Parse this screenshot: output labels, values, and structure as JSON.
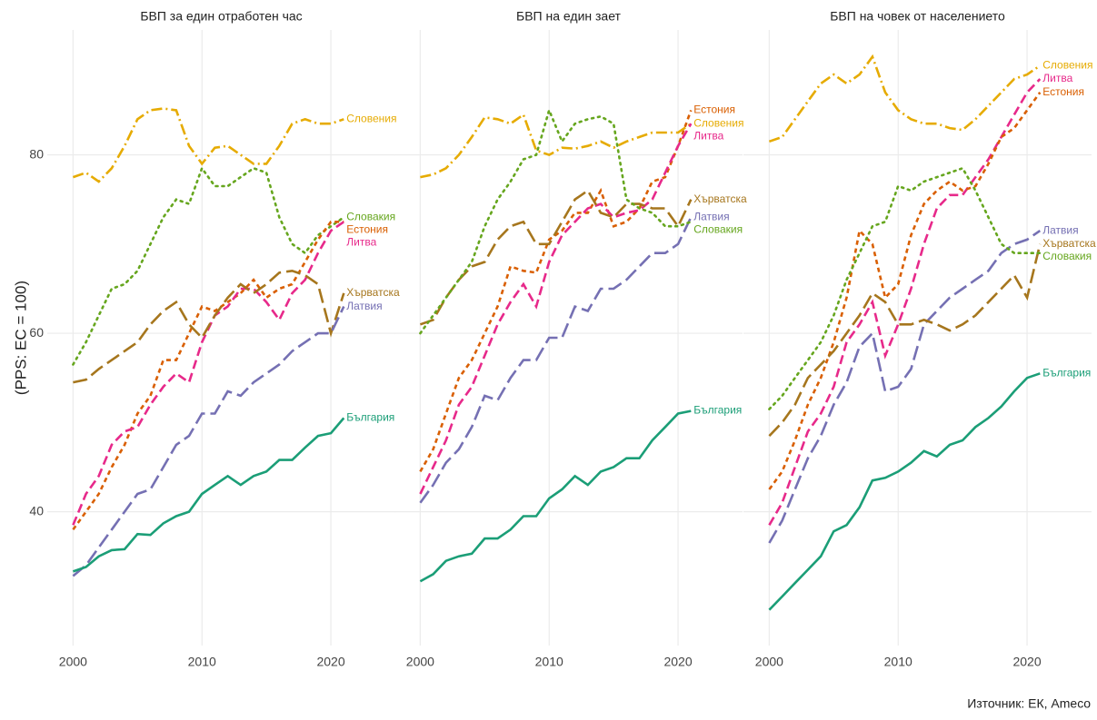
{
  "y_label": "(PPS: ЕС = 100)",
  "source": "Източник: ЕК, Ameco",
  "chart_data": [
    {
      "type": "line",
      "title": "БВП за един отработен час",
      "x": [
        2000,
        2001,
        2002,
        2003,
        2004,
        2005,
        2006,
        2007,
        2008,
        2009,
        2010,
        2011,
        2012,
        2013,
        2014,
        2015,
        2016,
        2017,
        2018,
        2019,
        2020,
        2021
      ],
      "xlim": [
        1998,
        2025
      ],
      "xticks": [
        2000,
        2010,
        2020
      ],
      "ylim": [
        25,
        94
      ],
      "yticks": [
        40,
        60,
        80
      ],
      "grid": true,
      "series": [
        {
          "name": "Словения",
          "color": "#e6ab02",
          "linestyle": "dashdot",
          "values": [
            77.5,
            78,
            77,
            78.5,
            81,
            84,
            85,
            85.2,
            85,
            81,
            79,
            80.8,
            81,
            80,
            79,
            79,
            81,
            83.5,
            84,
            83.5,
            83.5,
            84
          ]
        },
        {
          "name": "Словакия",
          "color": "#66a61e",
          "linestyle": "dotted",
          "values": [
            56.5,
            59,
            62,
            65,
            65.5,
            67,
            70,
            73,
            75,
            74.5,
            78.5,
            76.5,
            76.5,
            77.5,
            78.5,
            78,
            73,
            70,
            69,
            71,
            72,
            73
          ]
        },
        {
          "name": "Естония",
          "color": "#d95f02",
          "linestyle": "shortdash",
          "values": [
            38,
            40,
            42,
            45,
            47.5,
            51,
            53,
            57,
            57,
            60,
            63,
            62.5,
            63.5,
            64.5,
            66,
            64,
            65,
            65.5,
            68,
            70.5,
            72.5,
            72.5
          ]
        },
        {
          "name": "Литва",
          "color": "#e7298a",
          "linestyle": "dash",
          "values": [
            38.5,
            42,
            44,
            47.5,
            49,
            49.5,
            52,
            54,
            55.5,
            54.5,
            59,
            62,
            63,
            65,
            65,
            63.5,
            61.5,
            64.5,
            66,
            69,
            71.5,
            72.5
          ]
        },
        {
          "name": "Хърватска",
          "color": "#a6761d",
          "linestyle": "longdash",
          "values": [
            54.5,
            54.8,
            56,
            57,
            58,
            59,
            61,
            62.5,
            63.5,
            61,
            59.5,
            62,
            64,
            65.5,
            64.5,
            65.5,
            66.8,
            67,
            66.5,
            65.5,
            60,
            64.5
          ]
        },
        {
          "name": "Латвия",
          "color": "#7570b3",
          "linestyle": "longdash",
          "values": [
            32.8,
            34,
            36,
            38,
            40,
            42,
            42.5,
            45,
            47.5,
            48.5,
            51,
            51,
            53.5,
            53,
            54.5,
            55.5,
            56.5,
            58,
            59,
            60,
            60,
            63
          ]
        },
        {
          "name": "България",
          "color": "#1b9e77",
          "linestyle": "solid",
          "values": [
            33.3,
            33.8,
            35,
            35.7,
            35.8,
            37.5,
            37.4,
            38.7,
            39.5,
            40,
            42,
            43,
            44,
            43,
            44,
            44.5,
            45.8,
            45.8,
            47.2,
            48.5,
            48.8,
            50.5
          ]
        }
      ]
    },
    {
      "type": "line",
      "title": "БВП на един зает",
      "x": [
        2000,
        2001,
        2002,
        2003,
        2004,
        2005,
        2006,
        2007,
        2008,
        2009,
        2010,
        2011,
        2012,
        2013,
        2014,
        2015,
        2016,
        2017,
        2018,
        2019,
        2020,
        2021
      ],
      "xlim": [
        1998,
        2025
      ],
      "xticks": [
        2000,
        2010,
        2020
      ],
      "ylim": [
        25,
        94
      ],
      "yticks": [
        40,
        60,
        80
      ],
      "grid": true,
      "series": [
        {
          "name": "Естония",
          "color": "#d95f02",
          "linestyle": "shortdash",
          "values": [
            44.5,
            47,
            51,
            55,
            57,
            60,
            63,
            67.5,
            67,
            66.8,
            70.5,
            71.5,
            73.5,
            73.5,
            76,
            72,
            72.5,
            74,
            77,
            77.5,
            81,
            85
          ]
        },
        {
          "name": "Словения",
          "color": "#e6ab02",
          "linestyle": "dashdot",
          "values": [
            77.5,
            77.8,
            78.5,
            80,
            82,
            84.2,
            84,
            83.5,
            84.5,
            80.5,
            80,
            80.8,
            80.7,
            81,
            81.5,
            80.8,
            81.5,
            82,
            82.5,
            82.5,
            82.5,
            83.5
          ]
        },
        {
          "name": "Литва",
          "color": "#e7298a",
          "linestyle": "dash",
          "values": [
            42,
            45,
            48,
            52,
            54,
            57.5,
            61,
            63.5,
            65.5,
            63,
            68,
            71,
            72.5,
            74,
            74.5,
            73,
            73.5,
            73.8,
            75,
            78,
            81,
            83.5
          ]
        },
        {
          "name": "Хърватска",
          "color": "#a6761d",
          "linestyle": "longdash",
          "values": [
            61,
            61.5,
            64,
            66,
            67.5,
            68,
            70.5,
            72,
            72.5,
            70,
            70,
            72.5,
            75,
            76,
            73.5,
            73,
            74.5,
            74.5,
            74,
            74,
            72,
            75
          ]
        },
        {
          "name": "Латвия",
          "color": "#7570b3",
          "linestyle": "longdash",
          "values": [
            41,
            43,
            45.5,
            47,
            49.5,
            53,
            52.5,
            55,
            57,
            57,
            59.5,
            59.5,
            63,
            62.5,
            65,
            65,
            66,
            67.5,
            69,
            69,
            70,
            73
          ]
        },
        {
          "name": "Словакия",
          "color": "#66a61e",
          "linestyle": "dotted",
          "values": [
            60,
            62,
            64,
            66,
            68,
            72,
            75,
            77,
            79.5,
            80,
            85,
            81.5,
            83.5,
            84,
            84.3,
            83.5,
            75,
            74,
            73.5,
            72,
            72,
            72.5
          ]
        },
        {
          "name": "България",
          "color": "#1b9e77",
          "linestyle": "solid",
          "values": [
            32.2,
            33,
            34.5,
            35,
            35.3,
            37,
            37,
            38,
            39.5,
            39.5,
            41.5,
            42.5,
            44,
            43,
            44.5,
            45,
            46,
            46,
            48,
            49.5,
            51,
            51.3
          ]
        }
      ]
    },
    {
      "type": "line",
      "title": "БВП на човек от населението",
      "x": [
        2000,
        2001,
        2002,
        2003,
        2004,
        2005,
        2006,
        2007,
        2008,
        2009,
        2010,
        2011,
        2012,
        2013,
        2014,
        2015,
        2016,
        2017,
        2018,
        2019,
        2020,
        2021
      ],
      "xlim": [
        1998,
        2025
      ],
      "xticks": [
        2000,
        2010,
        2020
      ],
      "ylim": [
        25,
        94
      ],
      "yticks": [
        40,
        60,
        80
      ],
      "grid": true,
      "series": [
        {
          "name": "Словения",
          "color": "#e6ab02",
          "linestyle": "dashdot",
          "values": [
            81.5,
            82,
            84,
            86,
            88,
            89,
            88,
            89,
            91,
            87,
            85,
            84,
            83.5,
            83.5,
            83,
            82.8,
            84,
            85.5,
            87,
            88.5,
            89,
            90
          ]
        },
        {
          "name": "Литва",
          "color": "#e7298a",
          "linestyle": "dash",
          "values": [
            38.5,
            41,
            45,
            49,
            51,
            54,
            59,
            61,
            63.5,
            57.5,
            61,
            65,
            70,
            74,
            75.5,
            75.5,
            77.5,
            79.5,
            82,
            84.5,
            87,
            88.5
          ]
        },
        {
          "name": "Естония",
          "color": "#d95f02",
          "linestyle": "shortdash",
          "values": [
            42.5,
            44.5,
            48,
            52,
            55,
            59,
            64,
            71.5,
            70,
            64,
            65.5,
            71,
            74.5,
            76,
            77,
            76,
            76.5,
            79,
            82,
            83,
            85,
            87
          ]
        },
        {
          "name": "Латвия",
          "color": "#7570b3",
          "linestyle": "longdash",
          "values": [
            36.5,
            39,
            42.5,
            46,
            48.5,
            52,
            54.5,
            58.5,
            60,
            53.5,
            54,
            56,
            61,
            62.5,
            64,
            65,
            66,
            67,
            69,
            70,
            70.5,
            71.5
          ]
        },
        {
          "name": "Хърватска",
          "color": "#a6761d",
          "linestyle": "longdash",
          "values": [
            48.5,
            50,
            52,
            55,
            56.5,
            58,
            60,
            62,
            64.5,
            63.5,
            61,
            61,
            61.5,
            61,
            60.3,
            61,
            62,
            63.5,
            65,
            66.5,
            64,
            70
          ]
        },
        {
          "name": "Словакия",
          "color": "#66a61e",
          "linestyle": "dotted",
          "values": [
            51.5,
            53,
            55,
            57,
            59,
            62,
            66,
            69,
            72,
            72.5,
            76.5,
            76,
            77,
            77.5,
            78,
            78.5,
            76,
            73,
            70,
            69,
            69,
            69
          ]
        },
        {
          "name": "България",
          "color": "#1b9e77",
          "linestyle": "solid",
          "values": [
            29,
            30.5,
            32,
            33.5,
            35,
            37.8,
            38.5,
            40.5,
            43.5,
            43.8,
            44.5,
            45.5,
            46.8,
            46.2,
            47.5,
            48,
            49.5,
            50.5,
            51.8,
            53.5,
            55,
            55.5
          ]
        }
      ]
    }
  ]
}
